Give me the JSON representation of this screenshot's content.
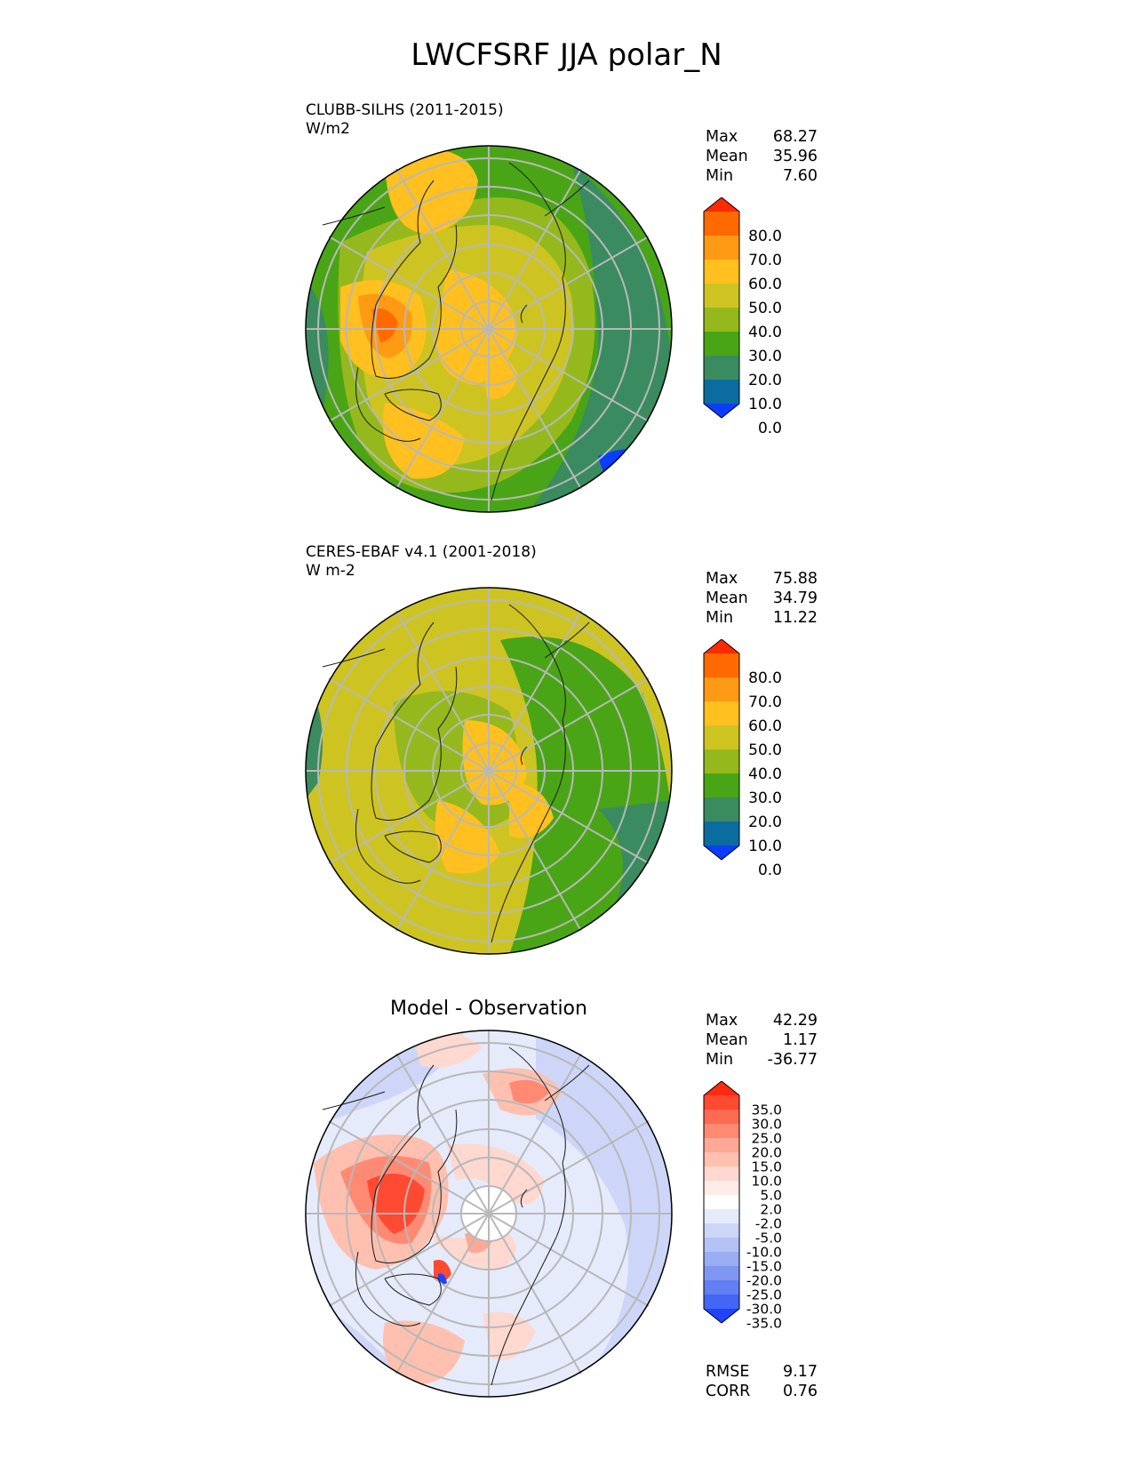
{
  "figure": {
    "title": "LWCFSRF JJA polar_N"
  },
  "panels": [
    {
      "id": "test",
      "title_lines": [
        "CLUBB-SILHS (2011-2015)",
        "W/m2"
      ],
      "stats": [
        {
          "label": "Max",
          "value": "68.27"
        },
        {
          "label": "Mean",
          "value": "35.96"
        },
        {
          "label": "Min",
          "value": "7.60"
        }
      ],
      "colorbar": {
        "ticks": [
          "80.0",
          "70.0",
          "60.0",
          "50.0",
          "40.0",
          "30.0",
          "20.0",
          "10.0",
          "0.0"
        ],
        "colors_top_to_bottom": [
          "#ff2a00",
          "#ff6a00",
          "#ff9a14",
          "#ffc020",
          "#cdc422",
          "#95b91c",
          "#49a515",
          "#3a8b60",
          "#0b6ca0",
          "#0a3dff"
        ]
      }
    },
    {
      "id": "reference",
      "title_lines": [
        "CERES-EBAF v4.1 (2001-2018)",
        "W m-2"
      ],
      "stats": [
        {
          "label": "Max",
          "value": "75.88"
        },
        {
          "label": "Mean",
          "value": "34.79"
        },
        {
          "label": "Min",
          "value": "11.22"
        }
      ],
      "colorbar": {
        "ticks": [
          "80.0",
          "70.0",
          "60.0",
          "50.0",
          "40.0",
          "30.0",
          "20.0",
          "10.0",
          "0.0"
        ],
        "colors_top_to_bottom": [
          "#ff2a00",
          "#ff6a00",
          "#ff9a14",
          "#ffc020",
          "#cdc422",
          "#95b91c",
          "#49a515",
          "#3a8b60",
          "#0b6ca0",
          "#0a3dff"
        ]
      }
    },
    {
      "id": "diff",
      "center_title": "Model - Observation",
      "stats": [
        {
          "label": "Max",
          "value": "42.29"
        },
        {
          "label": "Mean",
          "value": "1.17"
        },
        {
          "label": "Min",
          "value": "-36.77"
        }
      ],
      "colorbar": {
        "ticks": [
          "35.0",
          "30.0",
          "25.0",
          "20.0",
          "15.0",
          "10.0",
          "5.0",
          "2.0",
          "-2.0",
          "-5.0",
          "-10.0",
          "-15.0",
          "-20.0",
          "-25.0",
          "-30.0",
          "-35.0"
        ],
        "colors_top_to_bottom": [
          "#ff2a10",
          "#ff4a32",
          "#ff6a52",
          "#ff8a74",
          "#ffa896",
          "#ffc0b0",
          "#ffd8cf",
          "#ffecea",
          "#ffffff",
          "#e6ebfb",
          "#cdd6f8",
          "#b4c2f5",
          "#9aadf3",
          "#7f97f2",
          "#627ff3",
          "#4366f5",
          "#1f44fb"
        ]
      },
      "metrics": [
        {
          "label": "RMSE",
          "value": "9.17"
        },
        {
          "label": "CORR",
          "value": "0.76"
        }
      ]
    }
  ],
  "map_colors": {
    "ocean_low": "#3a8b60",
    "mid_green": "#49a515",
    "olive": "#95b91c",
    "yellow_green": "#cdc422",
    "orange_yellow": "#ffc020",
    "orange": "#ff9a14",
    "deep_blue": "#0a3dff",
    "diff_neg": "#cdd6f8",
    "diff_pos": "#ffc0b0",
    "diff_strong_pos": "#ff6a52"
  }
}
